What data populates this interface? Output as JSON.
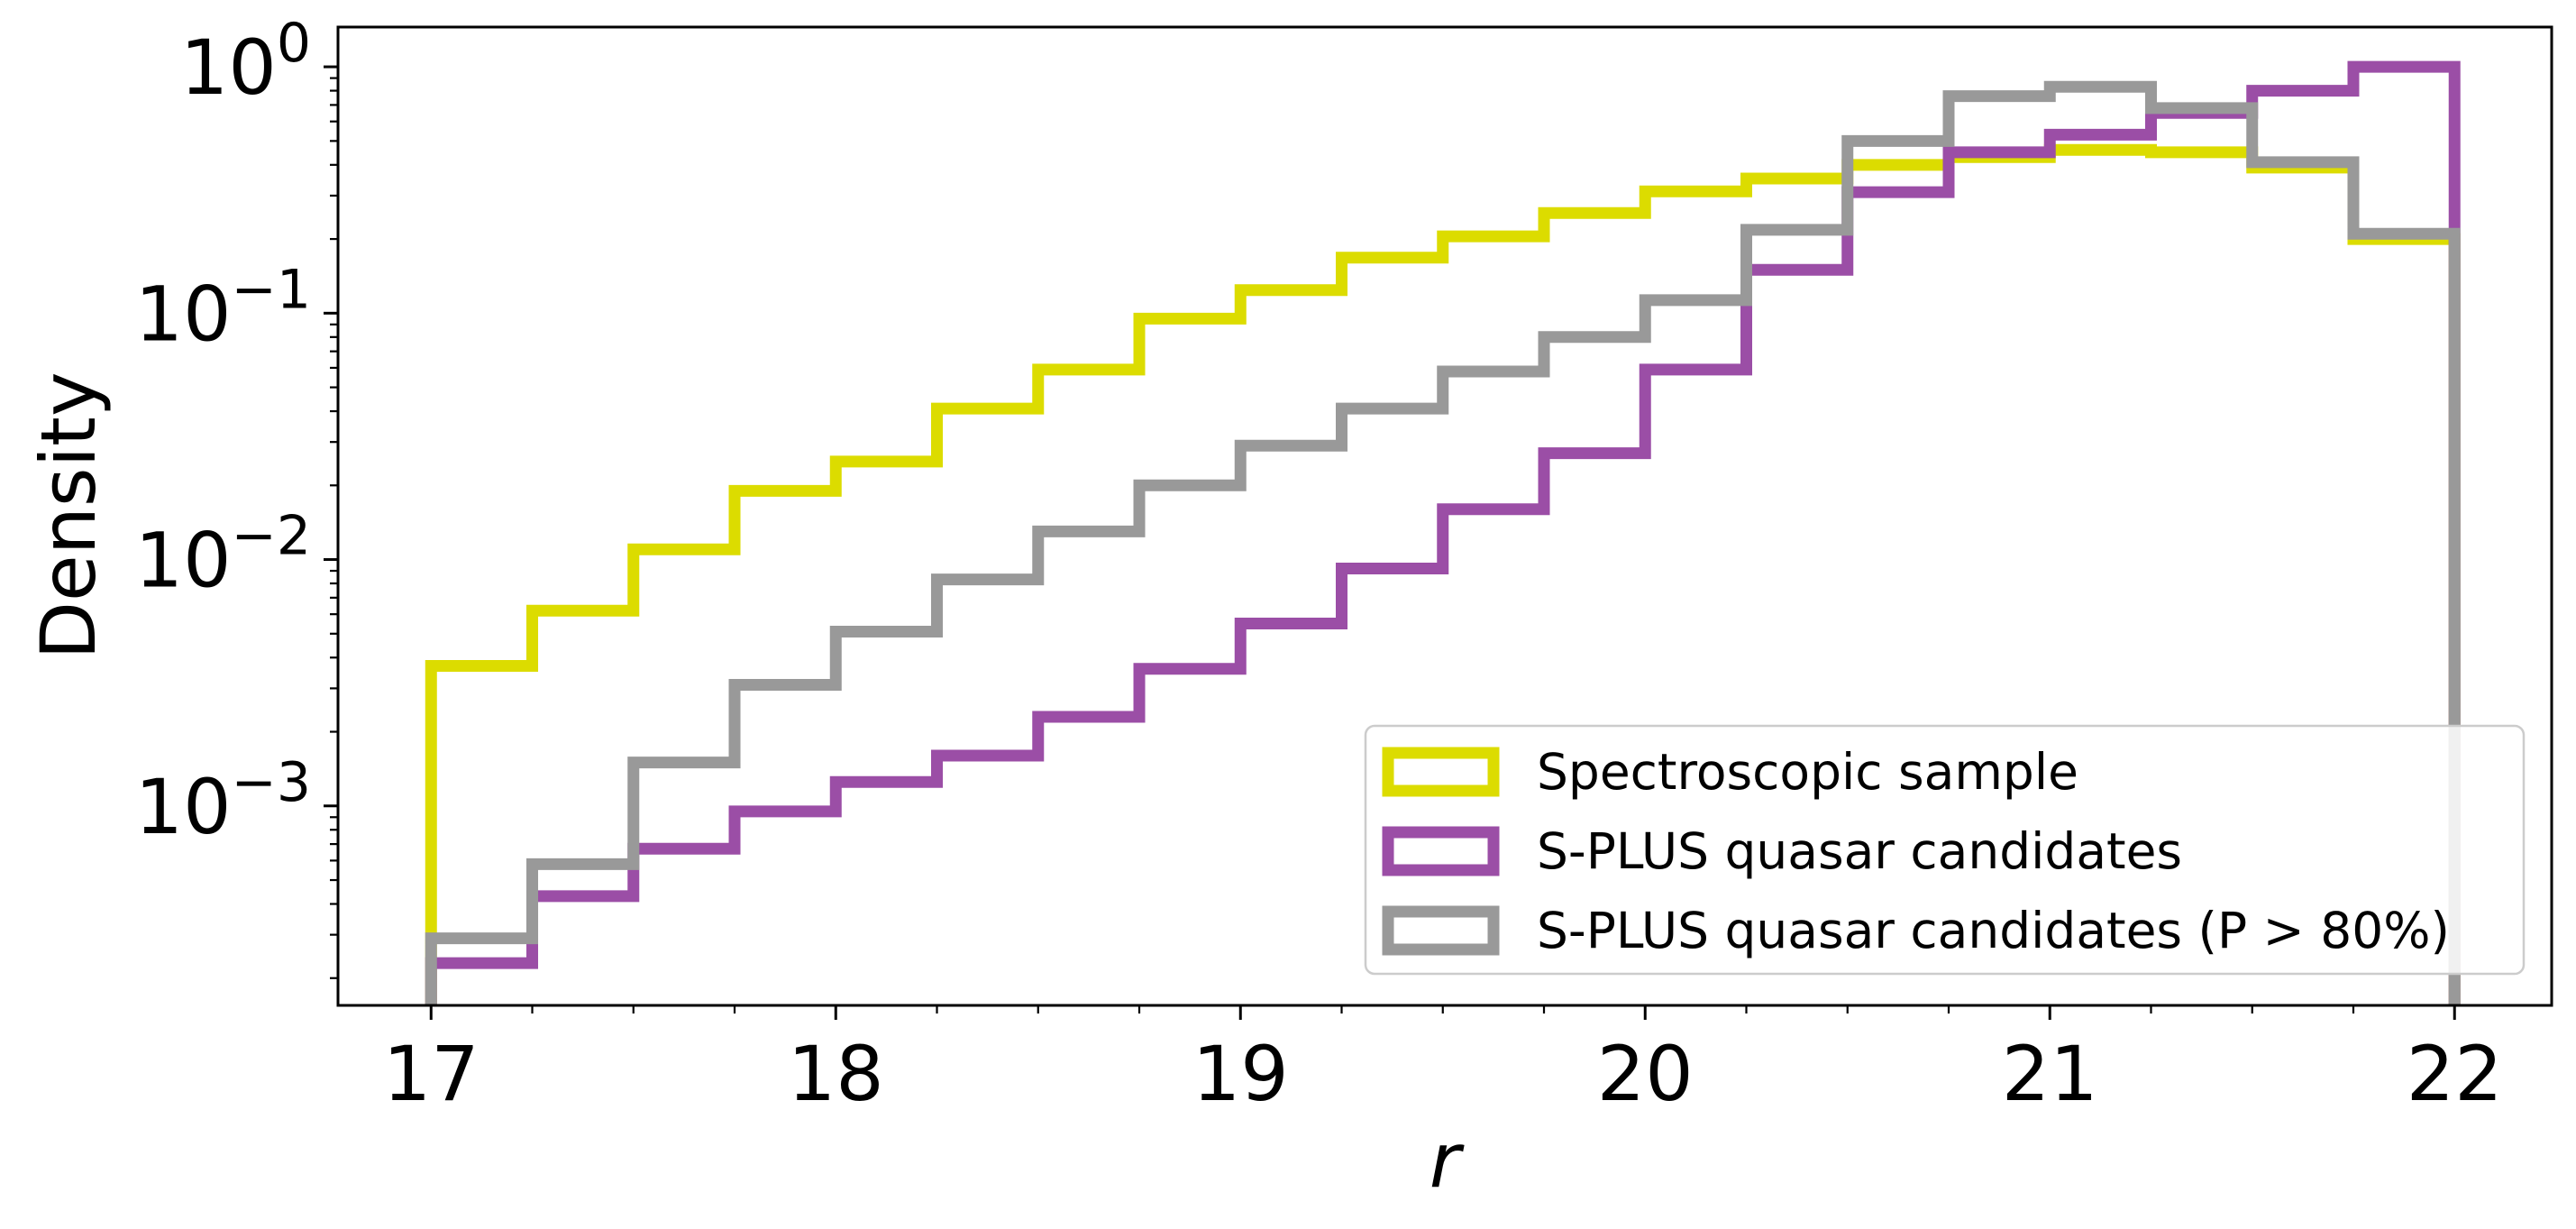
{
  "chart_data": {
    "type": "step-histogram",
    "xlabel": "r",
    "ylabel": "Density",
    "xlim": [
      16.77,
      22.24
    ],
    "ylim": [
      0.000155,
      1.45
    ],
    "yscale": "log",
    "xticks": [
      "17",
      "18",
      "19",
      "20",
      "21",
      "22"
    ],
    "yticks": [
      {
        "base": "10",
        "exp": "0",
        "value": 1
      },
      {
        "base": "10",
        "exp": "−1",
        "value": 0.1
      },
      {
        "base": "10",
        "exp": "−2",
        "value": 0.01
      },
      {
        "base": "10",
        "exp": "−3",
        "value": 0.001
      }
    ],
    "bin_edges": [
      17.0,
      17.25,
      17.5,
      17.75,
      18.0,
      18.25,
      18.5,
      18.75,
      19.0,
      19.25,
      19.5,
      19.75,
      20.0,
      20.25,
      20.5,
      20.75,
      21.0,
      21.25,
      21.5,
      21.75,
      22.0
    ],
    "grid": false,
    "legend_position": "lower-right",
    "series": [
      {
        "name": "Spectroscopic sample",
        "color": "#dcdc00",
        "values": [
          0.0037,
          0.0062,
          0.011,
          0.019,
          0.025,
          0.041,
          0.059,
          0.095,
          0.124,
          0.168,
          0.205,
          0.255,
          0.312,
          0.352,
          0.4,
          0.43,
          0.46,
          0.45,
          0.39,
          0.2
        ]
      },
      {
        "name": "S-PLUS quasar candidates",
        "color": "#9b4ea6",
        "values": [
          0.00023,
          0.00043,
          0.00067,
          0.00095,
          0.00125,
          0.0016,
          0.0023,
          0.0036,
          0.0055,
          0.0092,
          0.016,
          0.027,
          0.059,
          0.15,
          0.31,
          0.45,
          0.53,
          0.65,
          0.8,
          1.0
        ]
      },
      {
        "name": "S-PLUS quasar candidates (P > 80%)",
        "color": "#999999",
        "values": [
          0.00029,
          0.00058,
          0.0015,
          0.0031,
          0.0051,
          0.0083,
          0.013,
          0.02,
          0.029,
          0.041,
          0.058,
          0.08,
          0.113,
          0.218,
          0.5,
          0.76,
          0.83,
          0.68,
          0.41,
          0.21
        ]
      }
    ]
  }
}
